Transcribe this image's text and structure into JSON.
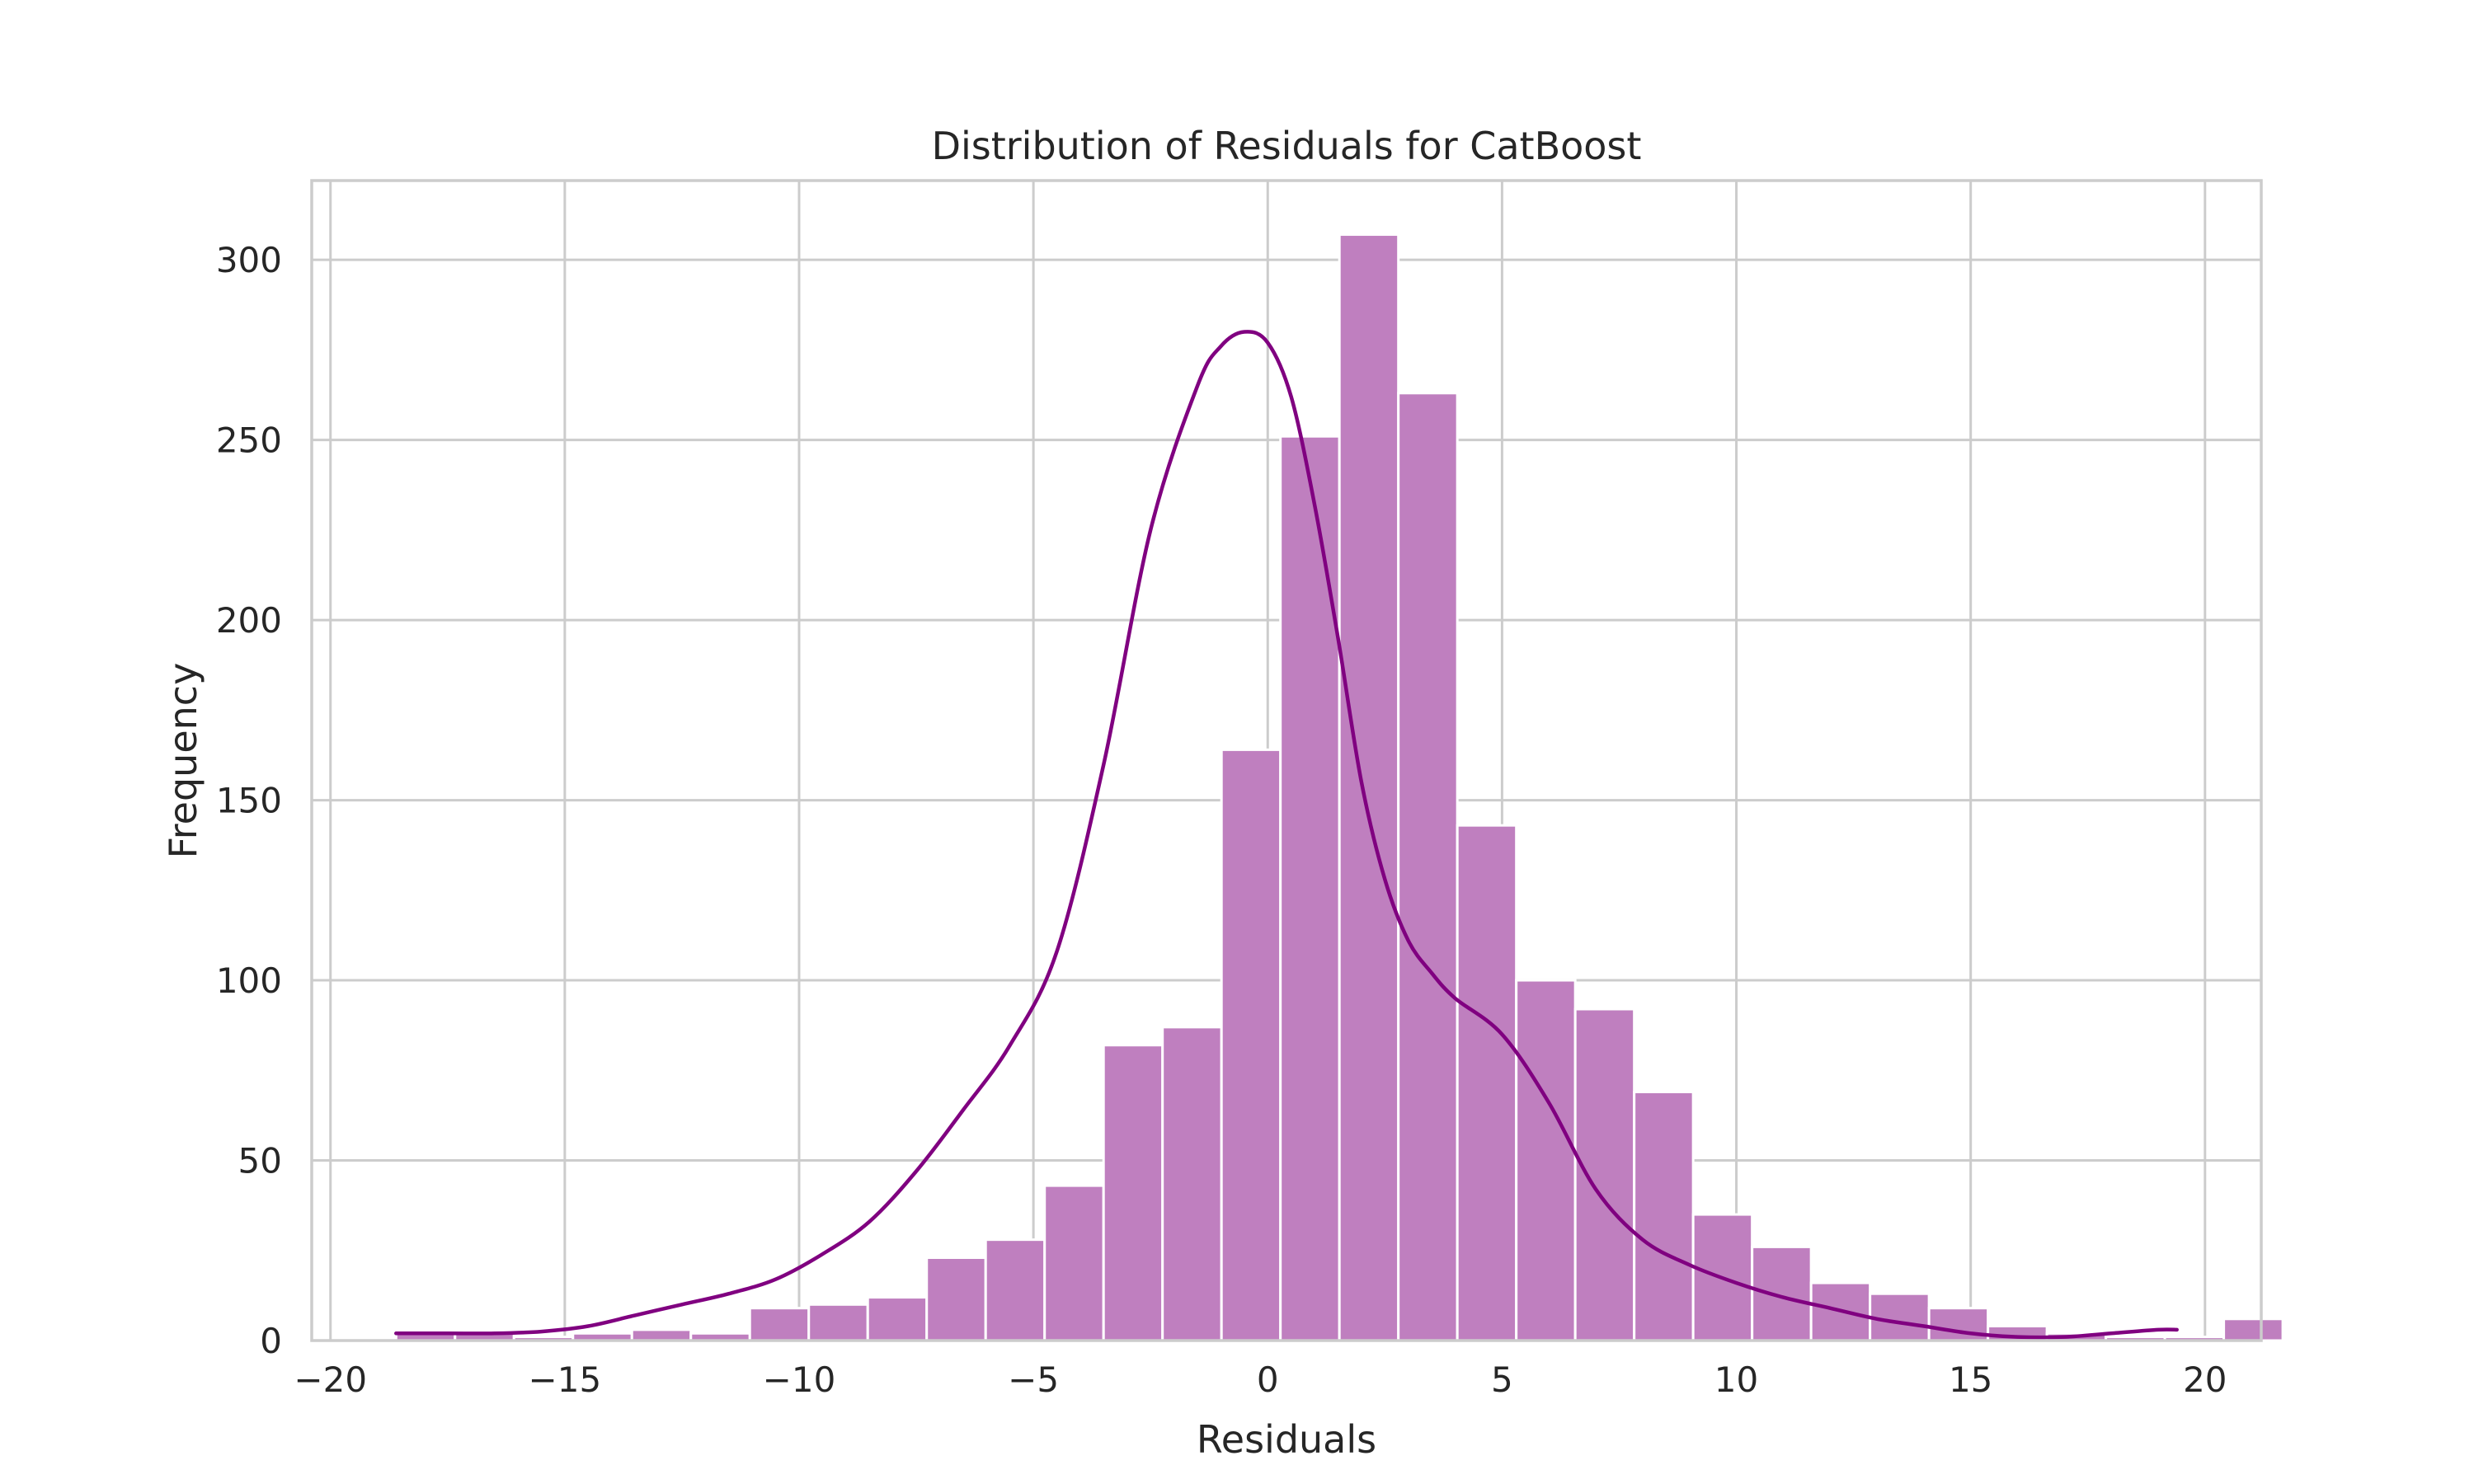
{
  "chart_data": {
    "type": "bar",
    "title": "Distribution of Residuals for CatBoost",
    "xlabel": "Residuals",
    "ylabel": "Frequency",
    "xlim": [
      -20.4,
      21.2
    ],
    "ylim": [
      0,
      322
    ],
    "xticks": [
      -20,
      -15,
      -10,
      -5,
      0,
      5,
      10,
      15,
      20
    ],
    "xtick_labels": [
      "−20",
      "−15",
      "−10",
      "−5",
      "0",
      "5",
      "10",
      "15",
      "20"
    ],
    "yticks": [
      0,
      50,
      100,
      150,
      200,
      250,
      300
    ],
    "ytick_labels": [
      "0",
      "50",
      "100",
      "150",
      "200",
      "250",
      "300"
    ],
    "grid": true,
    "bin_start": -18.6,
    "bin_width": 1.2581,
    "values": [
      2,
      2,
      1,
      2,
      3,
      2,
      9,
      10,
      12,
      23,
      28,
      43,
      82,
      87,
      164,
      251,
      307,
      263,
      143,
      100,
      92,
      69,
      35,
      26,
      16,
      13,
      9,
      4,
      2,
      1,
      1,
      6
    ],
    "kde": {
      "x": [
        -18.6,
        -17.5,
        -16.5,
        -15.5,
        -14.5,
        -13.5,
        -12.5,
        -11.5,
        -10.5,
        -9.5,
        -8.5,
        -7.5,
        -6.5,
        -5.5,
        -4.5,
        -3.5,
        -2.5,
        -1.5,
        -1.0,
        -0.5,
        0.0,
        0.5,
        1.0,
        1.5,
        2.0,
        2.5,
        3.0,
        3.5,
        4.0,
        5.0,
        6.0,
        7.0,
        8.0,
        9.0,
        10.0,
        11.0,
        12.0,
        13.0,
        14.0,
        15.0,
        16.0,
        17.0,
        18.0,
        19.0,
        19.4
      ],
      "y": [
        2,
        2,
        2,
        2.5,
        4,
        7,
        10,
        13,
        17,
        24,
        33,
        47,
        64,
        82,
        108,
        160,
        225,
        265,
        276,
        280,
        277,
        262,
        232,
        195,
        155,
        128,
        111,
        102,
        95,
        85,
        66,
        42,
        28,
        21,
        16,
        12,
        9,
        6,
        4,
        2,
        1,
        1,
        2,
        3,
        3
      ]
    },
    "colors": {
      "bar": "#bf7fbf",
      "line": "#800080",
      "grid": "#cccccc",
      "text": "#262626"
    }
  }
}
